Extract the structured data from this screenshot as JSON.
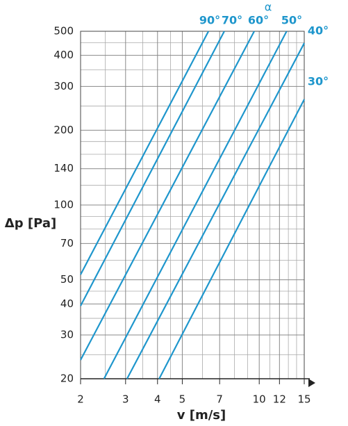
{
  "chart_data": {
    "type": "line",
    "title": "α",
    "x_label": "v [m/s]",
    "y_label": "Δp [Pa]",
    "log_x": true,
    "log_y": true,
    "grid": true,
    "xlim": [
      2,
      15
    ],
    "ylim": [
      20,
      500
    ],
    "xticks": [
      2,
      3,
      4,
      5,
      7,
      10,
      12,
      15
    ],
    "yticks": [
      20,
      30,
      40,
      50,
      70,
      100,
      140,
      200,
      300,
      400,
      500
    ],
    "xgrid": [
      2.5,
      3.5,
      4.5,
      6,
      8,
      9,
      11,
      13,
      14
    ],
    "ygrid": [
      25,
      35,
      45,
      60,
      80,
      90,
      120,
      160,
      180,
      250,
      350,
      450
    ],
    "series": [
      {
        "name": "90°",
        "color": "#1e96cc",
        "x": [
          2,
          6.33
        ],
        "values": [
          52.5,
          500
        ]
      },
      {
        "name": "70°",
        "color": "#1e96cc",
        "x": [
          2,
          7.3
        ],
        "values": [
          39.3,
          500
        ]
      },
      {
        "name": "60°",
        "color": "#1e96cc",
        "x": [
          2,
          9.56
        ],
        "values": [
          23.8,
          500
        ]
      },
      {
        "name": "50°",
        "color": "#1e96cc",
        "x": [
          2.47,
          12.8
        ],
        "values": [
          20,
          500
        ]
      },
      {
        "name": "40°",
        "color": "#1e96cc",
        "x": [
          3.04,
          15
        ],
        "values": [
          20,
          448
        ]
      },
      {
        "name": "30°",
        "color": "#1e96cc",
        "x": [
          4.06,
          15
        ],
        "values": [
          20,
          266
        ]
      }
    ]
  }
}
